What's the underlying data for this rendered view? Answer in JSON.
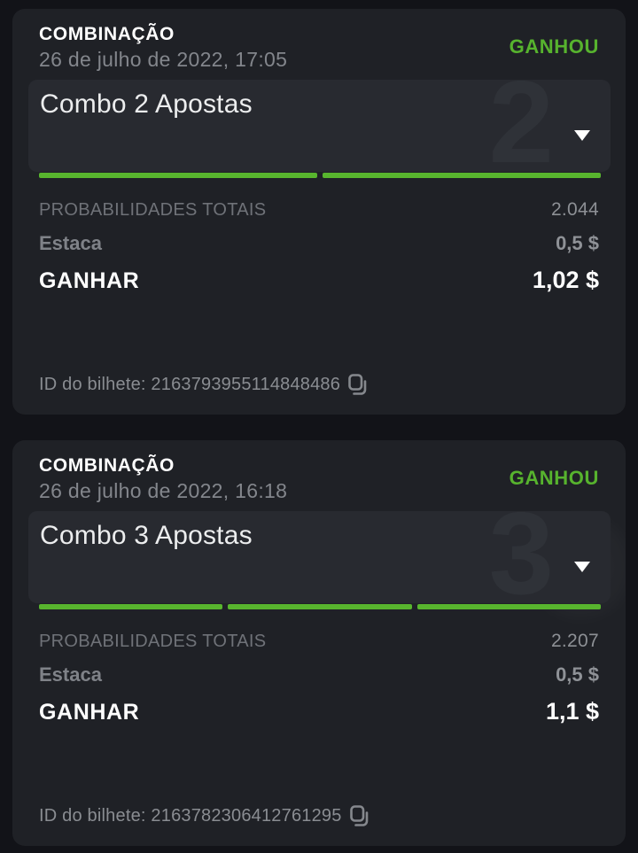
{
  "colors": {
    "page_bg": "#121318",
    "card_bg": "#1f2126",
    "panel_bg": "#282a30",
    "status_win_green": "#57b32e",
    "progress_green": "#58b52e"
  },
  "icons": {
    "chevron": "chevron-down-icon",
    "copy": "copy-icon"
  },
  "tickets": [
    {
      "type_label": "COMBINAÇÃO",
      "date": "26 de julho de 2022, 17:05",
      "status": "GANHOU",
      "combo_title": "Combo 2 Apostas",
      "legs": "2",
      "odds_label": "PROBABILIDADES TOTAIS",
      "odds_value": "2.044",
      "stake_label": "Estaca",
      "stake_value": "0,5 $",
      "win_label": "GANHAR",
      "win_value": "1,02 $",
      "ticket_id_label": "ID do bilhete:",
      "ticket_id": "2163793955114848486"
    },
    {
      "type_label": "COMBINAÇÃO",
      "date": "26 de julho de 2022, 16:18",
      "status": "GANHOU",
      "combo_title": "Combo 3 Apostas",
      "legs": "3",
      "odds_label": "PROBABILIDADES TOTAIS",
      "odds_value": "2.207",
      "stake_label": "Estaca",
      "stake_value": "0,5 $",
      "win_label": "GANHAR",
      "win_value": "1,1 $",
      "ticket_id_label": "ID do bilhete:",
      "ticket_id": "2163782306412761295"
    }
  ]
}
